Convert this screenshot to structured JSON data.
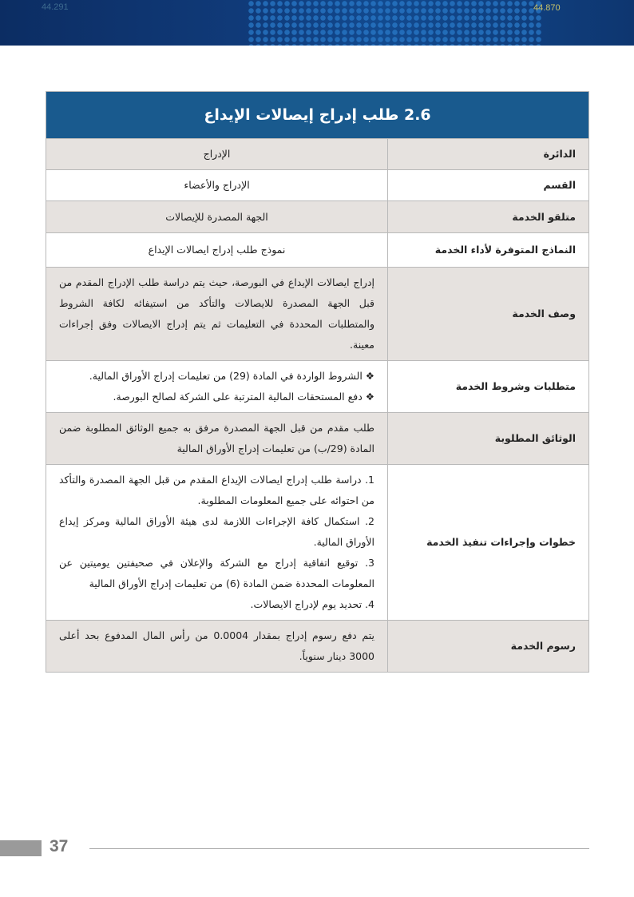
{
  "banner": {
    "ticker_left": "44.291",
    "ticker_right": "44.870"
  },
  "title": "2.6 طلب إدراج إيصالات الإيداع",
  "rows": [
    {
      "label": "الدائرة",
      "value": "الإدراج"
    },
    {
      "label": "القسم",
      "value": "الإدراج والأعضاء"
    },
    {
      "label": "متلقو الخدمة",
      "value": "الجهة المصدرة للإيصالات"
    },
    {
      "label": "النماذج المتوفرة لأداء الخدمة",
      "value": "نموذج طلب إدراج ايصالات الإيداع"
    },
    {
      "label": "وصف الخدمة",
      "value": "إدراج ايصالات الإيداع في البورصة، حيث يتم دراسة طلب الإدراج المقدم من قبل الجهة المصدرة للايصالات والتأكد من استيفائه لكافة الشروط والمتطلبات المحددة في التعليمات ثم يتم إدراج الايصالات وفق إجراءات معينة."
    },
    {
      "label": "متطلبات وشروط الخدمة",
      "items": [
        "❖ الشروط الواردة في المادة (29) من تعليمات إدراج الأوراق المالية.",
        "❖ دفع المستحقات المالية المترتبة على الشركة لصالح البورصة."
      ]
    },
    {
      "label": "الوثائق المطلوبة",
      "value": "طلب مقدم من قبل الجهة المصدرة مرفق به جميع الوثائق المطلوبة ضمن المادة (29/ب) من تعليمات إدراج الأوراق المالية"
    },
    {
      "label": "خطوات وإجراءات تنفيذ الخدمة",
      "items": [
        "1. دراسة طلب إدراج ايصالات الإيداع المقدم من قبل الجهة المصدرة والتأكد من احتوائه على جميع المعلومات المطلوبة.",
        "2. استكمال كافة الإجراءات اللازمة لدى هيئة الأوراق المالية ومركز إيداع الأوراق المالية.",
        "3. توقيع اتفاقية إدراج مع الشركة والإعلان في صحيفتين يوميتين عن المعلومات المحددة ضمن المادة (6) من تعليمات إدراج الأوراق المالية",
        "4. تحديد يوم لإدراج الايصالات."
      ]
    },
    {
      "label": "رسوم الخدمة",
      "value": "يتم دفع رسوم إدراج بمقدار 0.0004 من رأس المال المدفوع بحد أعلى 3000 دينار سنوياً."
    }
  ],
  "footer": {
    "page_number": "37"
  }
}
